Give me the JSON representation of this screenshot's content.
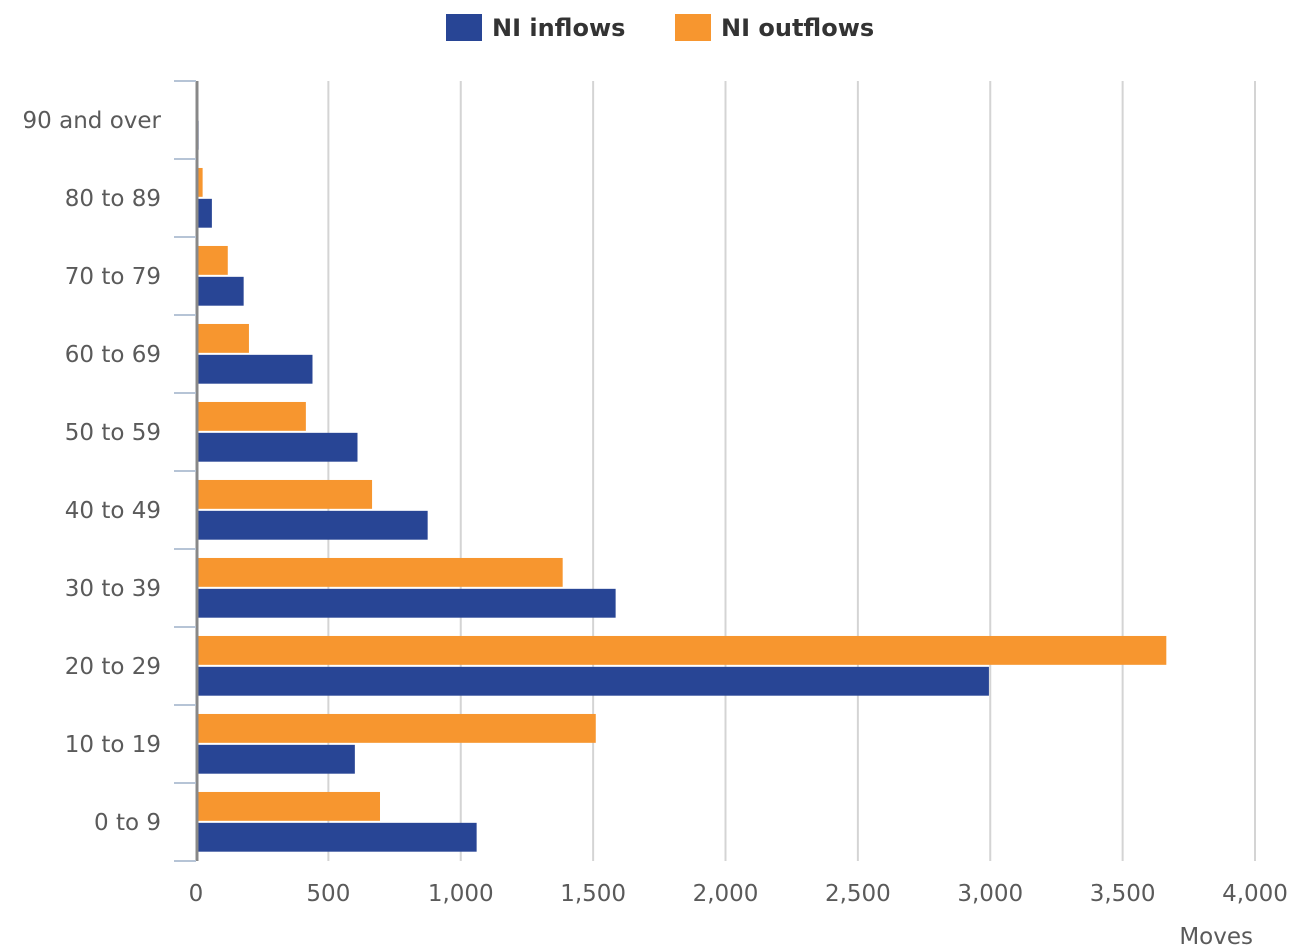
{
  "chart_data": {
    "type": "bar",
    "orientation": "horizontal",
    "categories": [
      "90 and over",
      "80 to 89",
      "70 to 79",
      "60 to 69",
      "50 to 59",
      "40 to 49",
      "30 to 39",
      "20 to 29",
      "10 to 19",
      "0 to 9"
    ],
    "series": [
      {
        "name": "NI outflows",
        "color": "#f7962f",
        "values": [
          8,
          25,
          120,
          200,
          415,
          665,
          1385,
          3665,
          1510,
          695
        ]
      },
      {
        "name": "NI inflows",
        "color": "#284595",
        "values": [
          10,
          60,
          180,
          440,
          610,
          875,
          1585,
          2995,
          600,
          1060
        ]
      }
    ],
    "legend_order": [
      "NI inflows",
      "NI outflows"
    ],
    "xlabel": "Moves",
    "xlim": [
      0,
      4000
    ],
    "xticks": [
      0,
      500,
      1000,
      1500,
      2000,
      2500,
      3000,
      3500,
      4000
    ],
    "xtick_labels": [
      "0",
      "500",
      "1,000",
      "1,500",
      "2,000",
      "2,500",
      "3,000",
      "3,500",
      "4,000"
    ],
    "grid": "vertical",
    "legend_position": "top-center"
  }
}
